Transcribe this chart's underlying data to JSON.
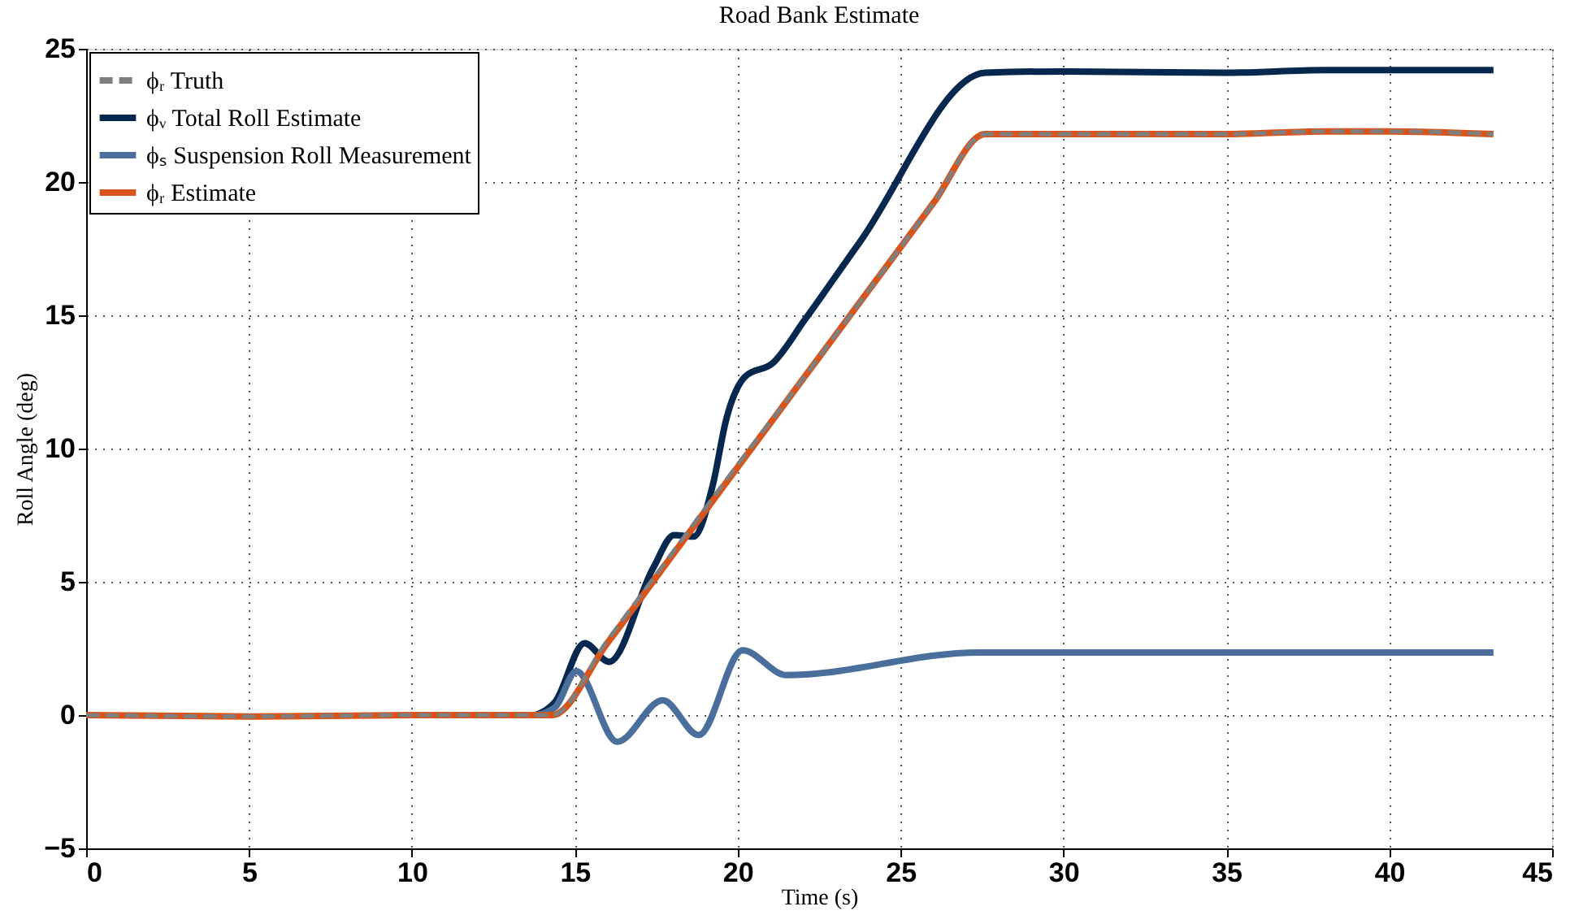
{
  "chart_data": {
    "type": "line",
    "title": "Road Bank Estimate",
    "xlabel": "Time (s)",
    "ylabel": "Roll Angle (deg)",
    "xlim": [
      0,
      45
    ],
    "xticks": [
      0,
      5,
      10,
      15,
      20,
      25,
      30,
      35,
      40,
      45
    ],
    "ylim": [
      -5,
      25
    ],
    "yticks": [
      {
        "value": -5,
        "label": "−5"
      },
      0,
      5,
      10,
      15,
      20,
      25
    ],
    "grid": true,
    "legend": "top left",
    "series": [
      {
        "name": "ϕᵣ Truth",
        "color": "#7f7f7f",
        "line_style": "dashed",
        "x": [
          0,
          5,
          10,
          14.3,
          16,
          18,
          20,
          22,
          24,
          26,
          27.6,
          30,
          35,
          38,
          40,
          43.2
        ],
        "values": [
          0,
          -0.05,
          0,
          0,
          2.8,
          6.1,
          9.4,
          12.6,
          15.9,
          19.2,
          21.8,
          21.8,
          21.8,
          21.9,
          21.9,
          21.8
        ]
      },
      {
        "name": "ϕᵥ Total Roll Estimate",
        "color": "#06274e",
        "line_style": "solid",
        "x": [
          13.8,
          14.4,
          15.3,
          16.05,
          17.4,
          18.05,
          18.65,
          19.23,
          19.65,
          20.23,
          21.07,
          22.07,
          23.75,
          27.6,
          30,
          35,
          38,
          40,
          43.2
        ],
        "values": [
          0,
          0.5,
          2.7,
          2.0,
          5.5,
          6.75,
          6.7,
          8.6,
          11.1,
          12.7,
          13.2,
          14.85,
          17.75,
          24.1,
          24.15,
          24.1,
          24.2,
          24.2,
          24.2
        ]
      },
      {
        "name": "ϕₛ Suspension Roll Measurement",
        "color": "#4a6f9c",
        "line_style": "solid",
        "x": [
          13.8,
          14.4,
          15.05,
          16.3,
          17.7,
          18.8,
          20.15,
          21.5,
          27.4,
          30,
          35,
          40,
          43.2
        ],
        "values": [
          0,
          0.3,
          1.65,
          -1.0,
          0.56,
          -0.75,
          2.43,
          1.5,
          2.35,
          2.35,
          2.35,
          2.35,
          2.35
        ]
      },
      {
        "name": "ϕᵣ Estimate",
        "color": "#d9541a",
        "line_style": "solid",
        "x": [
          0,
          5,
          10,
          14.3,
          16,
          18,
          20,
          22,
          24,
          26,
          27.6,
          30,
          35,
          38,
          40,
          43.2
        ],
        "values": [
          0,
          -0.05,
          0,
          0,
          2.7,
          6.0,
          9.3,
          12.6,
          15.9,
          19.2,
          21.8,
          21.8,
          21.8,
          21.9,
          21.9,
          21.8
        ]
      }
    ]
  }
}
